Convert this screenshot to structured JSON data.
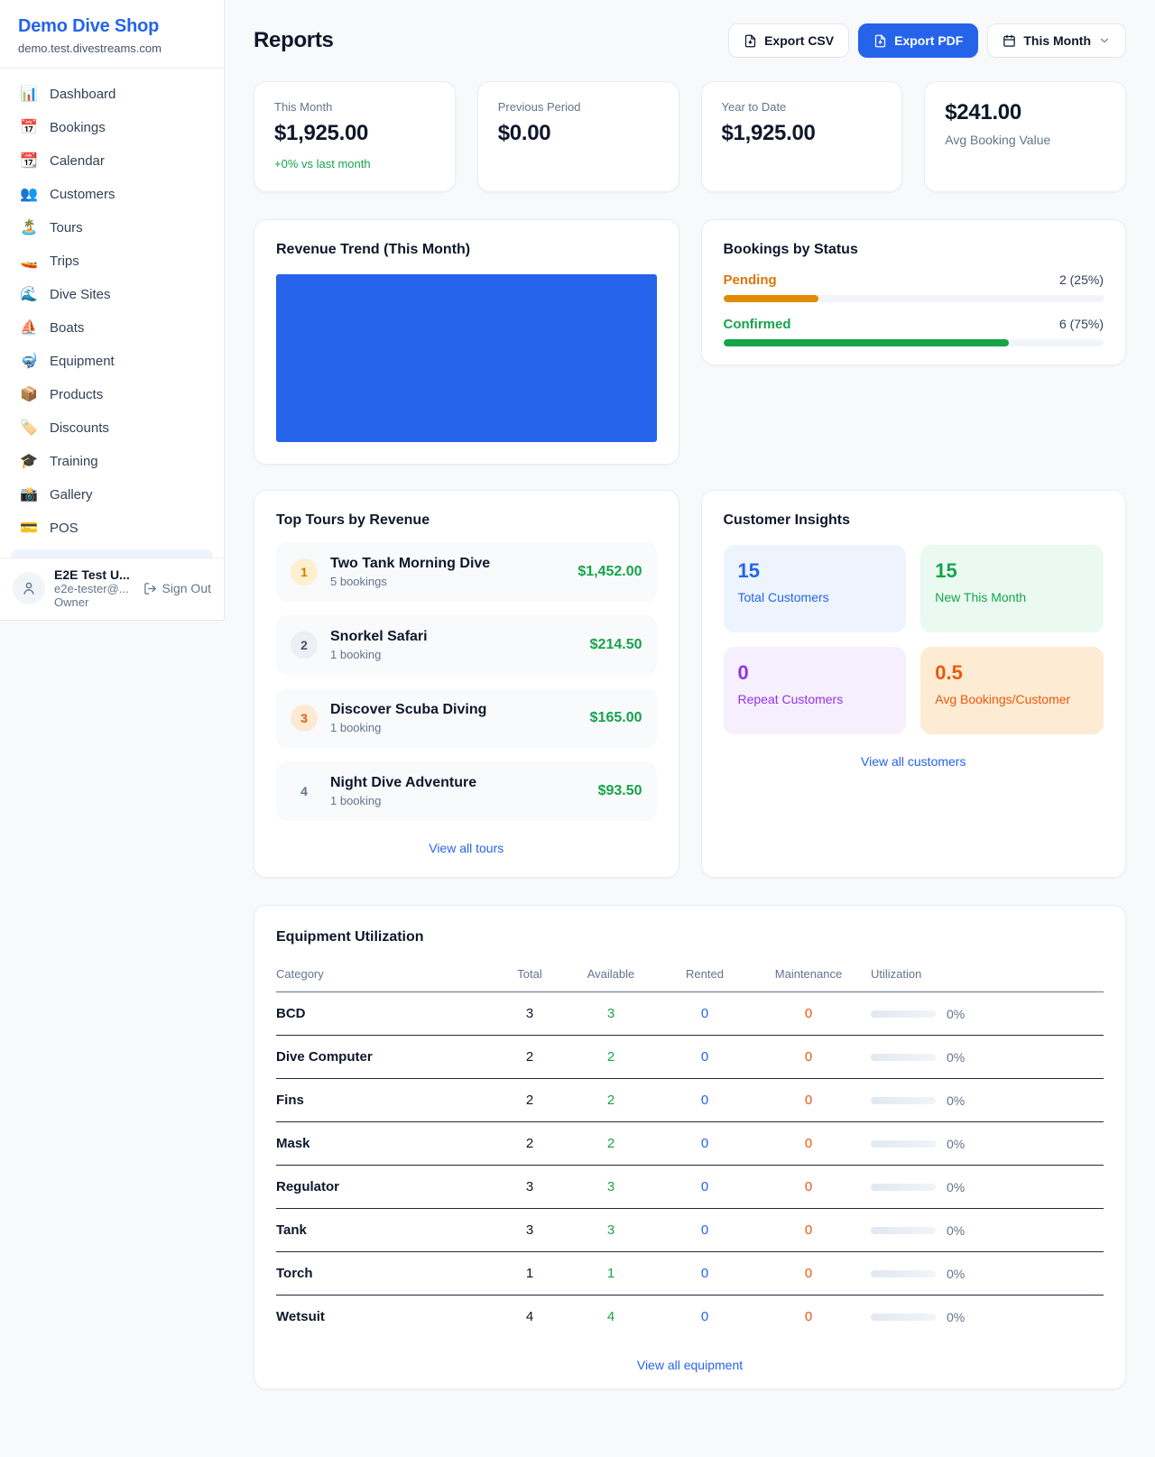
{
  "sidebar": {
    "shop_name": "Demo Dive Shop",
    "shop_domain": "demo.test.divestreams.com",
    "items": [
      {
        "icon": "📊",
        "label": "Dashboard"
      },
      {
        "icon": "📅",
        "label": "Bookings"
      },
      {
        "icon": "📆",
        "label": "Calendar"
      },
      {
        "icon": "👥",
        "label": "Customers"
      },
      {
        "icon": "🏝️",
        "label": "Tours"
      },
      {
        "icon": "🚤",
        "label": "Trips"
      },
      {
        "icon": "🌊",
        "label": "Dive Sites"
      },
      {
        "icon": "⛵",
        "label": "Boats"
      },
      {
        "icon": "🤿",
        "label": "Equipment"
      },
      {
        "icon": "📦",
        "label": "Products"
      },
      {
        "icon": "🏷️",
        "label": "Discounts"
      },
      {
        "icon": "🎓",
        "label": "Training"
      },
      {
        "icon": "📸",
        "label": "Gallery"
      },
      {
        "icon": "💳",
        "label": "POS"
      }
    ],
    "user": {
      "name": "E2E Test U...",
      "email": "e2e-tester@...",
      "role": "Owner",
      "sign_out_label": "Sign Out"
    }
  },
  "header": {
    "title": "Reports",
    "export_csv_label": "Export CSV",
    "export_pdf_label": "Export PDF",
    "period_selector_label": "This Month"
  },
  "stats": [
    {
      "label": "This Month",
      "value": "$1,925.00",
      "delta": "+0% vs last month"
    },
    {
      "label": "Previous Period",
      "value": "$0.00"
    },
    {
      "label": "Year to Date",
      "value": "$1,925.00"
    },
    {
      "label": "Avg Booking Value",
      "value": "$241.00"
    }
  ],
  "revenue_trend": {
    "title": "Revenue Trend (This Month)",
    "fill_color": "#2563eb",
    "note": "chart renders as a fully filled solid block, no axes or labels visible"
  },
  "bookings_by_status": {
    "title": "Bookings by Status",
    "items": [
      {
        "label": "Pending",
        "count_text": "2 (25%)",
        "percent": 25,
        "color": "#d97706"
      },
      {
        "label": "Confirmed",
        "count_text": "6 (75%)",
        "percent": 75,
        "color": "#16a34a"
      }
    ]
  },
  "top_tours": {
    "title": "Top Tours by Revenue",
    "items": [
      {
        "rank": "1",
        "name": "Two Tank Morning Dive",
        "bookings": "5 bookings",
        "revenue": "$1,452.00"
      },
      {
        "rank": "2",
        "name": "Snorkel Safari",
        "bookings": "1 booking",
        "revenue": "$214.50"
      },
      {
        "rank": "3",
        "name": "Discover Scuba Diving",
        "bookings": "1 booking",
        "revenue": "$165.00"
      },
      {
        "rank": "4",
        "name": "Night Dive Adventure",
        "bookings": "1 booking",
        "revenue": "$93.50"
      }
    ],
    "view_all_label": "View all tours"
  },
  "customer_insights": {
    "title": "Customer Insights",
    "tiles": [
      {
        "value": "15",
        "label": "Total Customers",
        "color": "#2563eb"
      },
      {
        "value": "15",
        "label": "New This Month",
        "color": "#16a34a"
      },
      {
        "value": "0",
        "label": "Repeat Customers",
        "color": "#9333ea"
      },
      {
        "value": "0.5",
        "label": "Avg Bookings/Customer",
        "color": "#ea580c"
      }
    ],
    "view_all_label": "View all customers"
  },
  "equipment": {
    "title": "Equipment Utilization",
    "columns": [
      "Category",
      "Total",
      "Available",
      "Rented",
      "Maintenance",
      "Utilization"
    ],
    "rows": [
      {
        "category": "BCD",
        "total": "3",
        "available": "3",
        "rented": "0",
        "maintenance": "0",
        "utilization": "0%"
      },
      {
        "category": "Dive Computer",
        "total": "2",
        "available": "2",
        "rented": "0",
        "maintenance": "0",
        "utilization": "0%"
      },
      {
        "category": "Fins",
        "total": "2",
        "available": "2",
        "rented": "0",
        "maintenance": "0",
        "utilization": "0%"
      },
      {
        "category": "Mask",
        "total": "2",
        "available": "2",
        "rented": "0",
        "maintenance": "0",
        "utilization": "0%"
      },
      {
        "category": "Regulator",
        "total": "3",
        "available": "3",
        "rented": "0",
        "maintenance": "0",
        "utilization": "0%"
      },
      {
        "category": "Tank",
        "total": "3",
        "available": "3",
        "rented": "0",
        "maintenance": "0",
        "utilization": "0%"
      },
      {
        "category": "Torch",
        "total": "1",
        "available": "1",
        "rented": "0",
        "maintenance": "0",
        "utilization": "0%"
      },
      {
        "category": "Wetsuit",
        "total": "4",
        "available": "4",
        "rented": "0",
        "maintenance": "0",
        "utilization": "0%"
      }
    ],
    "view_all_label": "View all equipment"
  },
  "colors": {
    "accent_blue": "#2563eb",
    "green": "#16a34a",
    "orange": "#d97706",
    "deep_orange": "#ea580c",
    "purple": "#9333ea",
    "page_bg": "#f7f9fb"
  }
}
